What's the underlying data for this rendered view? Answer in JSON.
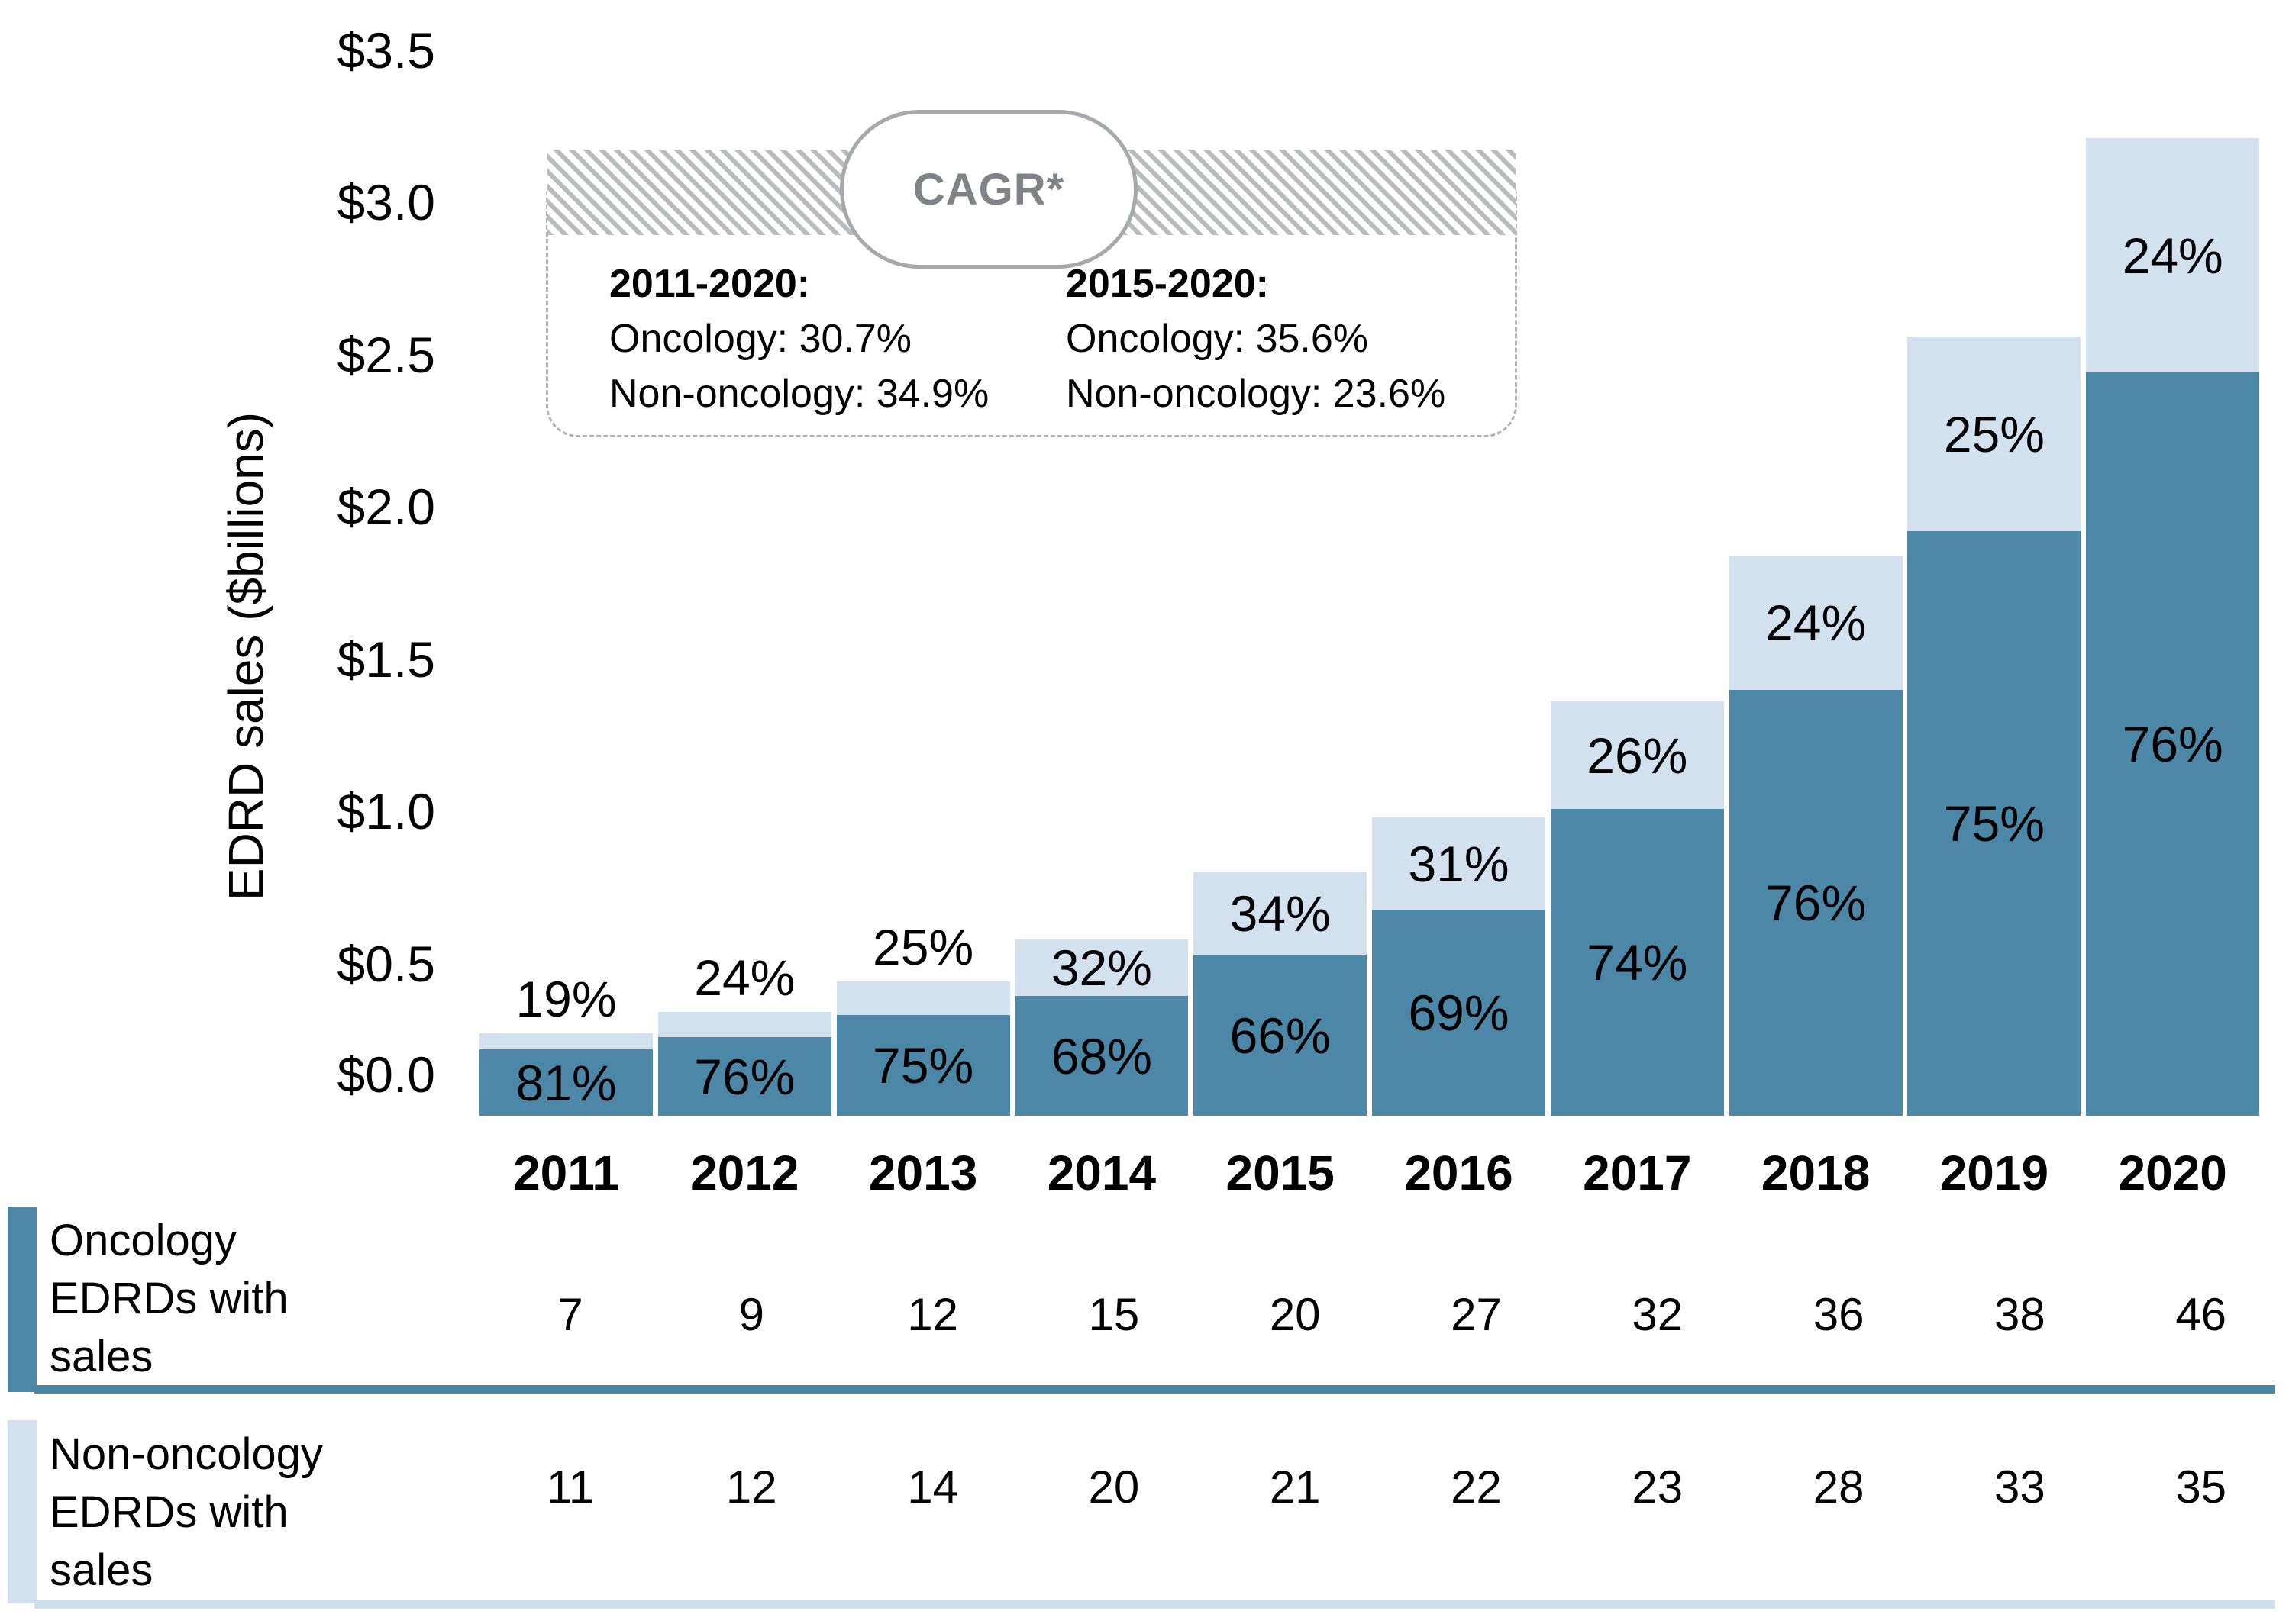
{
  "y_axis": {
    "title": "EDRD sales ($billions)",
    "ticks": [
      {
        "label": "$3.5",
        "value": 3.5
      },
      {
        "label": "$3.0",
        "value": 3.0
      },
      {
        "label": "$2.5",
        "value": 2.5
      },
      {
        "label": "$2.0",
        "value": 2.0
      },
      {
        "label": "$1.5",
        "value": 1.5
      },
      {
        "label": "$1.0",
        "value": 1.0
      },
      {
        "label": "$0.5",
        "value": 0.5
      },
      {
        "label": "$0.0",
        "value": 0.0
      }
    ]
  },
  "cagr_box": {
    "title": "CAGR*",
    "columns": [
      {
        "heading": "2011-2020:",
        "lines": [
          "Oncology: 30.7%",
          "Non-oncology: 34.9%"
        ]
      },
      {
        "heading": "2015-2020:",
        "lines": [
          "Oncology: 35.6%",
          "Non-oncology: 23.6%"
        ]
      }
    ]
  },
  "chart_data": {
    "type": "bar",
    "stacked": true,
    "title": "",
    "xlabel": "",
    "ylabel": "EDRD sales ($billions)",
    "ylim": [
      0,
      3.5
    ],
    "ytick_step": 0.5,
    "grid": false,
    "legend_position": "bottom-table",
    "categories": [
      "2011",
      "2012",
      "2013",
      "2014",
      "2015",
      "2016",
      "2017",
      "2018",
      "2019",
      "2020"
    ],
    "totals_billions": [
      0.27,
      0.34,
      0.44,
      0.58,
      0.8,
      0.98,
      1.36,
      1.84,
      2.56,
      3.21
    ],
    "series": [
      {
        "name": "Oncology EDRDs with sales",
        "color": "#4d87a7",
        "pct_of_total": [
          81,
          76,
          75,
          68,
          66,
          69,
          74,
          76,
          75,
          76
        ],
        "values_billions": [
          0.22,
          0.26,
          0.33,
          0.39,
          0.53,
          0.68,
          1.01,
          1.4,
          1.92,
          2.44
        ]
      },
      {
        "name": "Non-oncology EDRDs with sales",
        "color": "#d2e1ed",
        "pct_of_total": [
          19,
          24,
          25,
          32,
          34,
          31,
          26,
          24,
          25,
          24
        ],
        "values_billions": [
          0.05,
          0.08,
          0.11,
          0.19,
          0.27,
          0.3,
          0.35,
          0.44,
          0.64,
          0.77
        ]
      }
    ]
  },
  "table": {
    "rows": [
      {
        "label_lines": [
          "Oncology",
          "EDRDs with",
          "sales"
        ],
        "swatch_color": "#4d87a7",
        "values": [
          "7",
          "9",
          "12",
          "15",
          "20",
          "27",
          "32",
          "36",
          "38",
          "46"
        ]
      },
      {
        "label_lines": [
          "Non-oncology",
          "EDRDs with",
          "sales"
        ],
        "swatch_color": "#d2e1ed",
        "values": [
          "11",
          "12",
          "14",
          "20",
          "21",
          "22",
          "23",
          "28",
          "33",
          "35"
        ]
      }
    ]
  },
  "colors": {
    "oncology": "#4d87a7",
    "non_oncology": "#d2e1ed",
    "divider_dark": "#4c86a6",
    "divider_light": "#cedfeb",
    "cagr_text_gray": "#808285",
    "pill_border_gray": "#a6a8ab",
    "hatch_gray": "#b9bbbd",
    "dashed_border_gray": "#b0b2b5"
  }
}
